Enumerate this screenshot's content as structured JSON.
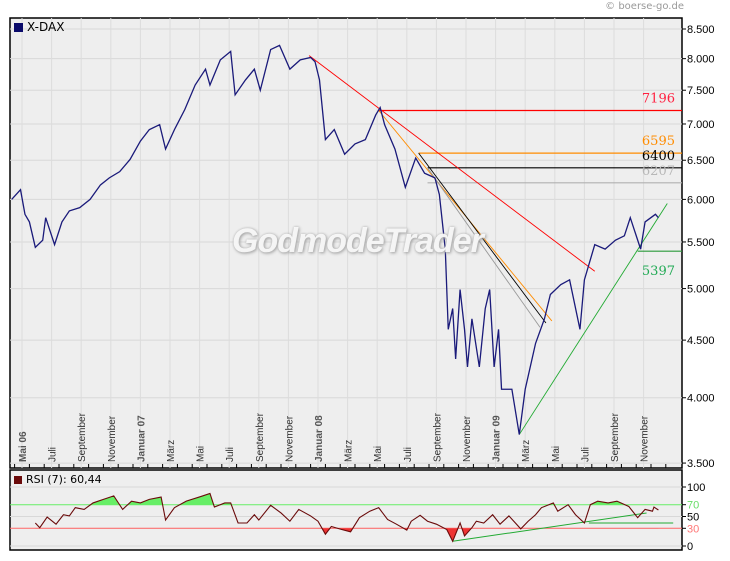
{
  "copyright": "© boerse-go.de",
  "watermark": "GodmodeTrader",
  "chart_data": [
    {
      "type": "line",
      "title": "X-DAX",
      "x_unit": "months since Mai 2006",
      "yscale": "log",
      "ylim": [
        3500,
        8500
      ],
      "y_ticks": [
        {
          "v": 8500,
          "label": "8.500"
        },
        {
          "v": 8000,
          "label": "8.000"
        },
        {
          "v": 7500,
          "label": "7.500"
        },
        {
          "v": 7000,
          "label": "7.000"
        },
        {
          "v": 6500,
          "label": "6.500"
        },
        {
          "v": 6000,
          "label": "6.000"
        },
        {
          "v": 5500,
          "label": "5.500"
        },
        {
          "v": 5000,
          "label": "5.000"
        },
        {
          "v": 4500,
          "label": "4.500"
        },
        {
          "v": 4000,
          "label": "4.000"
        },
        {
          "v": 3500,
          "label": "3.500"
        }
      ],
      "x_ticks": [
        {
          "t": 0,
          "label": "Mai 06",
          "bold": true
        },
        {
          "t": 2,
          "label": "Juli"
        },
        {
          "t": 4,
          "label": "September"
        },
        {
          "t": 6,
          "label": "November"
        },
        {
          "t": 8,
          "label": "Januar 07",
          "bold": true
        },
        {
          "t": 10,
          "label": "März"
        },
        {
          "t": 12,
          "label": "Mai"
        },
        {
          "t": 14,
          "label": "Juli"
        },
        {
          "t": 16,
          "label": "September"
        },
        {
          "t": 18,
          "label": "November"
        },
        {
          "t": 20,
          "label": "Januar 08",
          "bold": true
        },
        {
          "t": 22,
          "label": "März"
        },
        {
          "t": 24,
          "label": "Mai"
        },
        {
          "t": 26,
          "label": "Juli"
        },
        {
          "t": 28,
          "label": "September"
        },
        {
          "t": 30,
          "label": "November"
        },
        {
          "t": 32,
          "label": "Januar 09",
          "bold": true
        },
        {
          "t": 34,
          "label": "März"
        },
        {
          "t": 36,
          "label": "Mai"
        },
        {
          "t": 38,
          "label": "Juli"
        },
        {
          "t": 40,
          "label": "September"
        },
        {
          "t": 42,
          "label": "November"
        }
      ],
      "series": [
        {
          "name": "X-DAX",
          "color": "#1a1a7a",
          "points": [
            [
              -0.7,
              6000
            ],
            [
              -0.1,
              6120
            ],
            [
              0.2,
              5820
            ],
            [
              0.5,
              5730
            ],
            [
              0.9,
              5440
            ],
            [
              1.4,
              5520
            ],
            [
              1.6,
              5780
            ],
            [
              2.2,
              5470
            ],
            [
              2.7,
              5730
            ],
            [
              3.2,
              5860
            ],
            [
              3.9,
              5900
            ],
            [
              4.6,
              6000
            ],
            [
              5.3,
              6180
            ],
            [
              5.9,
              6270
            ],
            [
              6.6,
              6350
            ],
            [
              7.3,
              6510
            ],
            [
              8.0,
              6760
            ],
            [
              8.6,
              6920
            ],
            [
              9.3,
              6990
            ],
            [
              9.7,
              6650
            ],
            [
              10.3,
              6920
            ],
            [
              11.0,
              7210
            ],
            [
              11.7,
              7580
            ],
            [
              12.4,
              7830
            ],
            [
              12.7,
              7580
            ],
            [
              13.4,
              7980
            ],
            [
              14.1,
              8120
            ],
            [
              14.4,
              7430
            ],
            [
              15.1,
              7660
            ],
            [
              15.7,
              7830
            ],
            [
              16.1,
              7500
            ],
            [
              16.8,
              8150
            ],
            [
              17.4,
              8220
            ],
            [
              18.1,
              7830
            ],
            [
              18.8,
              7980
            ],
            [
              19.5,
              8020
            ],
            [
              19.8,
              7950
            ],
            [
              20.1,
              7660
            ],
            [
              20.5,
              6780
            ],
            [
              21.1,
              6920
            ],
            [
              21.8,
              6580
            ],
            [
              22.5,
              6720
            ],
            [
              23.2,
              6780
            ],
            [
              23.9,
              7130
            ],
            [
              24.2,
              7240
            ],
            [
              24.5,
              6990
            ],
            [
              25.2,
              6650
            ],
            [
              25.9,
              6150
            ],
            [
              26.6,
              6530
            ],
            [
              27.2,
              6330
            ],
            [
              27.9,
              6270
            ],
            [
              28.2,
              6060
            ],
            [
              28.6,
              5420
            ],
            [
              28.8,
              4600
            ],
            [
              29.1,
              4800
            ],
            [
              29.3,
              4330
            ],
            [
              29.6,
              4990
            ],
            [
              29.9,
              4600
            ],
            [
              30.1,
              4260
            ],
            [
              30.4,
              4700
            ],
            [
              30.9,
              4260
            ],
            [
              31.3,
              4800
            ],
            [
              31.6,
              4990
            ],
            [
              31.9,
              4260
            ],
            [
              32.2,
              4600
            ],
            [
              32.4,
              4070
            ],
            [
              33.1,
              4070
            ],
            [
              33.6,
              3710
            ],
            [
              34.0,
              4070
            ],
            [
              34.7,
              4470
            ],
            [
              35.3,
              4700
            ],
            [
              35.7,
              4940
            ],
            [
              36.4,
              5040
            ],
            [
              37.0,
              5090
            ],
            [
              37.7,
              4600
            ],
            [
              38.0,
              5090
            ],
            [
              38.7,
              5470
            ],
            [
              39.4,
              5420
            ],
            [
              40.1,
              5520
            ],
            [
              40.7,
              5570
            ],
            [
              41.1,
              5780
            ],
            [
              41.8,
              5420
            ],
            [
              42.1,
              5730
            ],
            [
              42.8,
              5820
            ],
            [
              43.0,
              5780
            ]
          ]
        }
      ],
      "horizontal_levels": [
        {
          "value": 7196,
          "label": "7196",
          "color": "#ff0000",
          "label_color": "#ff2040",
          "from_t": 24.1
        },
        {
          "value": 6595,
          "label": "6595",
          "color": "#ff8c00",
          "label_color": "#ff8c00",
          "from_t": 26.8
        },
        {
          "value": 6400,
          "label": "6400",
          "color": "#000000",
          "label_color": "#000000",
          "from_t": 27.4
        },
        {
          "value": 6207,
          "label": "6207",
          "color": "#b0b0b0",
          "label_color": "#b8b8b8",
          "from_t": 27.4
        },
        {
          "value": 5397,
          "label": "5397",
          "color": "#2a9a3a",
          "label_color": "#22aa55",
          "from_t": 41.6
        }
      ],
      "trendlines": [
        {
          "from": [
            19.4,
            8050
          ],
          "to": [
            38.7,
            5180
          ],
          "color": "#ff0000"
        },
        {
          "from": [
            24.1,
            7196
          ],
          "to": [
            35.8,
            4680
          ],
          "color": "#ff8c00"
        },
        {
          "from": [
            26.8,
            6595
          ],
          "to": [
            35.4,
            4660
          ],
          "color": "#000000"
        },
        {
          "from": [
            27.4,
            6400
          ],
          "to": [
            35.0,
            4620
          ],
          "color": "#999999"
        },
        {
          "from": [
            33.6,
            3710
          ],
          "to": [
            43.6,
            5950
          ],
          "color": "#22aa33"
        }
      ]
    },
    {
      "type": "line",
      "title": "RSI (7): 60,44",
      "ylim": [
        0,
        100
      ],
      "y_ticks": [
        {
          "v": 100,
          "label": "100",
          "color": "#000000"
        },
        {
          "v": 70,
          "label": "70",
          "color": "#66dd66"
        },
        {
          "v": 50,
          "label": "50",
          "color": "#000000"
        },
        {
          "v": 30,
          "label": "30",
          "color": "#ff7777"
        },
        {
          "v": 0,
          "label": "0",
          "color": "#000000"
        }
      ],
      "overbought": 70,
      "oversold": 30,
      "series": [
        {
          "name": "RSI (7)",
          "color": "#6a0a0a",
          "points": [
            [
              0.9,
              39
            ],
            [
              1.2,
              31
            ],
            [
              1.7,
              49
            ],
            [
              2.3,
              37
            ],
            [
              2.8,
              53
            ],
            [
              3.2,
              51
            ],
            [
              3.6,
              65
            ],
            [
              4.2,
              62
            ],
            [
              4.8,
              73
            ],
            [
              5.5,
              79
            ],
            [
              6.2,
              85
            ],
            [
              6.8,
              62
            ],
            [
              7.4,
              76
            ],
            [
              8.0,
              73
            ],
            [
              8.6,
              79
            ],
            [
              9.4,
              83
            ],
            [
              9.7,
              44
            ],
            [
              10.3,
              65
            ],
            [
              11.1,
              76
            ],
            [
              12.1,
              84
            ],
            [
              12.7,
              89
            ],
            [
              13.0,
              66
            ],
            [
              13.7,
              73
            ],
            [
              14.1,
              73
            ],
            [
              14.6,
              39
            ],
            [
              15.2,
              39
            ],
            [
              15.7,
              53
            ],
            [
              16.0,
              44
            ],
            [
              16.8,
              69
            ],
            [
              17.5,
              56
            ],
            [
              18.1,
              42
            ],
            [
              18.7,
              62
            ],
            [
              19.5,
              51
            ],
            [
              20.0,
              42
            ],
            [
              20.5,
              20
            ],
            [
              20.9,
              33
            ],
            [
              21.6,
              28
            ],
            [
              22.2,
              24
            ],
            [
              22.8,
              48
            ],
            [
              23.5,
              59
            ],
            [
              24.1,
              65
            ],
            [
              24.7,
              45
            ],
            [
              25.3,
              37
            ],
            [
              26.0,
              27
            ],
            [
              26.3,
              42
            ],
            [
              26.9,
              52
            ],
            [
              27.4,
              42
            ],
            [
              28.0,
              37
            ],
            [
              28.7,
              28
            ],
            [
              29.1,
              8
            ],
            [
              29.6,
              39
            ],
            [
              29.9,
              17
            ],
            [
              30.4,
              31
            ],
            [
              30.7,
              42
            ],
            [
              31.2,
              39
            ],
            [
              31.8,
              53
            ],
            [
              32.3,
              37
            ],
            [
              32.9,
              51
            ],
            [
              33.7,
              29
            ],
            [
              34.2,
              42
            ],
            [
              34.7,
              53
            ],
            [
              35.1,
              65
            ],
            [
              35.9,
              73
            ],
            [
              36.2,
              59
            ],
            [
              36.9,
              70
            ],
            [
              37.4,
              53
            ],
            [
              38.0,
              39
            ],
            [
              38.4,
              70
            ],
            [
              38.9,
              76
            ],
            [
              39.6,
              73
            ],
            [
              40.2,
              76
            ],
            [
              41.0,
              67
            ],
            [
              41.6,
              48
            ],
            [
              42.1,
              62
            ],
            [
              42.6,
              59
            ],
            [
              42.7,
              66
            ],
            [
              43.0,
              61
            ]
          ]
        }
      ],
      "trendlines": [
        {
          "from": [
            29.1,
            8
          ],
          "to": [
            42.2,
            56
          ],
          "color": "#22aa33"
        },
        {
          "from": [
            38.3,
            39
          ],
          "to": [
            44.0,
            39
          ],
          "color": "#22aa33"
        }
      ]
    }
  ]
}
